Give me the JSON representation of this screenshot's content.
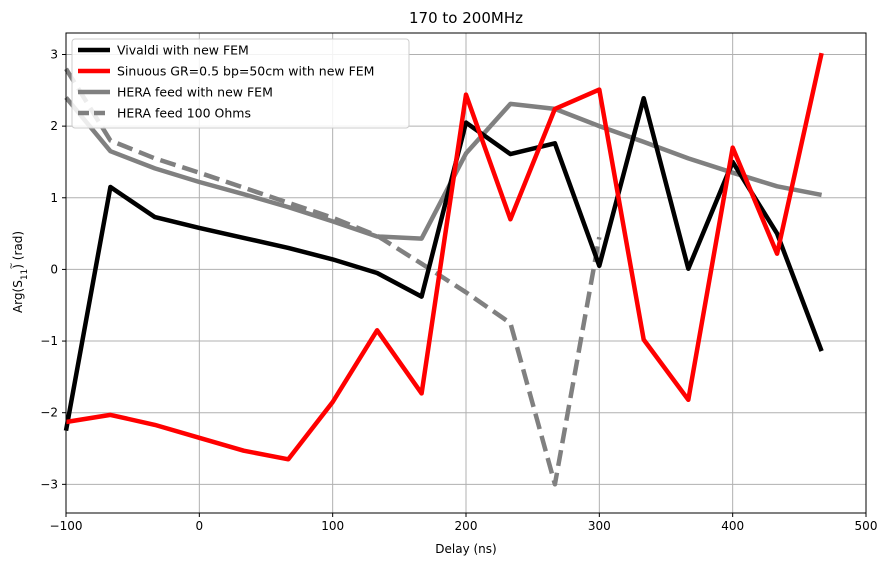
{
  "chart_data": {
    "type": "line",
    "title": "170 to 200MHz",
    "xlabel": "Delay (ns)",
    "ylabel_prefix": "Arg(",
    "ylabel_symbol": "S",
    "ylabel_sub": "11",
    "ylabel_suffix": ") (rad)",
    "xlim": [
      -100,
      500
    ],
    "ylim": [
      -3.4,
      3.3
    ],
    "xticks": [
      -100,
      0,
      100,
      200,
      300,
      400,
      500
    ],
    "yticks": [
      -3,
      -2,
      -1,
      0,
      1,
      2,
      3
    ],
    "grid": true,
    "legend_position": "upper-left",
    "series": [
      {
        "name": "Vivaldi with new FEM",
        "color": "#000000",
        "dash": "solid",
        "x": [
          -100,
          -66.7,
          -33.3,
          0,
          33.3,
          66.7,
          100,
          133.3,
          166.7,
          200,
          233.3,
          266.7,
          300,
          333.3,
          366.7,
          400,
          433.3,
          466.7
        ],
        "y": [
          -2.25,
          1.15,
          0.73,
          0.58,
          0.44,
          0.3,
          0.14,
          -0.05,
          -0.38,
          2.05,
          1.61,
          1.76,
          0.05,
          2.39,
          0.01,
          1.5,
          0.5,
          -1.14
        ]
      },
      {
        "name": "Sinuous GR=0.5 bp=50cm with new FEM",
        "color": "#ff0000",
        "dash": "solid",
        "x": [
          -100,
          -66.7,
          -33.3,
          0,
          33.3,
          66.7,
          100,
          133.3,
          166.7,
          200,
          233.3,
          266.7,
          300,
          333.3,
          366.7,
          400,
          433.3,
          466.7
        ],
        "y": [
          -2.13,
          -2.03,
          -2.17,
          -2.35,
          -2.53,
          -2.65,
          -1.85,
          -0.85,
          -1.73,
          2.44,
          0.7,
          2.24,
          2.51,
          -0.98,
          -1.82,
          1.7,
          0.22,
          3.02
        ]
      },
      {
        "name": "HERA feed with new FEM",
        "color": "#808080",
        "dash": "solid",
        "x": [
          -100,
          -66.7,
          -33.3,
          0,
          33.3,
          66.7,
          100,
          133.3,
          166.7,
          200,
          233.3,
          266.7,
          300,
          333.3,
          366.7,
          400,
          433.3,
          466.7
        ],
        "y": [
          2.4,
          1.65,
          1.41,
          1.22,
          1.05,
          0.87,
          0.67,
          0.46,
          0.43,
          1.62,
          2.31,
          2.24,
          2.0,
          1.78,
          1.55,
          1.35,
          1.16,
          1.04
        ]
      },
      {
        "name": "HERA feed 100 Ohms",
        "color": "#808080",
        "dash": "dashed",
        "x": [
          -100,
          -66.7,
          -33.3,
          0,
          33.3,
          66.7,
          100,
          133.3,
          166.7,
          200,
          233.3,
          266.7,
          300
        ],
        "y": [
          2.8,
          1.8,
          1.55,
          1.35,
          1.14,
          0.93,
          0.72,
          0.47,
          0.08,
          -0.32,
          -0.75,
          -3.0,
          0.45
        ]
      }
    ]
  }
}
